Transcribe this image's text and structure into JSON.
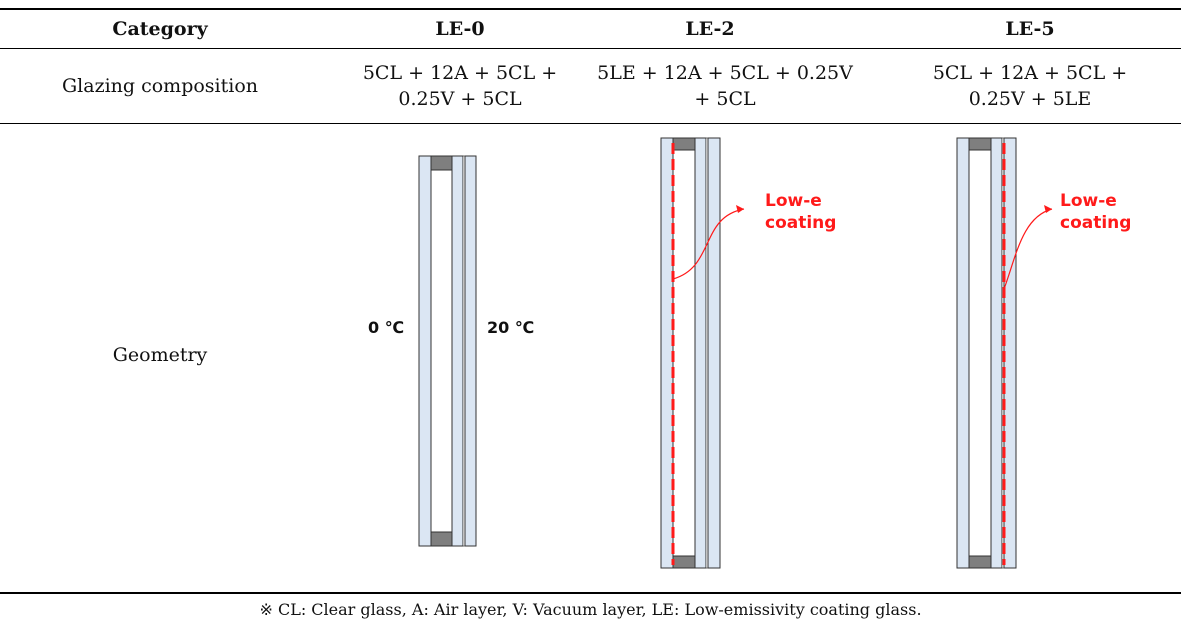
{
  "table": {
    "headers": [
      "Category",
      "LE-0",
      "LE-2",
      "LE-5"
    ],
    "rows": [
      {
        "label": "Glazing composition",
        "values": [
          [
            "5CL + 12A + 5CL +",
            "0.25V + 5CL"
          ],
          [
            "5LE + 12A + 5CL + 0.25V",
            "+ 5CL"
          ],
          [
            "5CL + 12A + 5CL +",
            "0.25V + 5LE"
          ]
        ]
      },
      {
        "label": "Geometry",
        "temperatures": {
          "outdoor": "0 ℃",
          "indoor": "20 ℃"
        },
        "coating_label": [
          "Low-e",
          "coating"
        ]
      }
    ]
  },
  "footnote": "※ CL: Clear glass, A: Air layer, V: Vacuum layer, LE: Low-emissivity coating glass.",
  "colors": {
    "glass": "#dbe6f3",
    "spacer": "#7f7f7f",
    "coating": "#ff1a1a"
  }
}
